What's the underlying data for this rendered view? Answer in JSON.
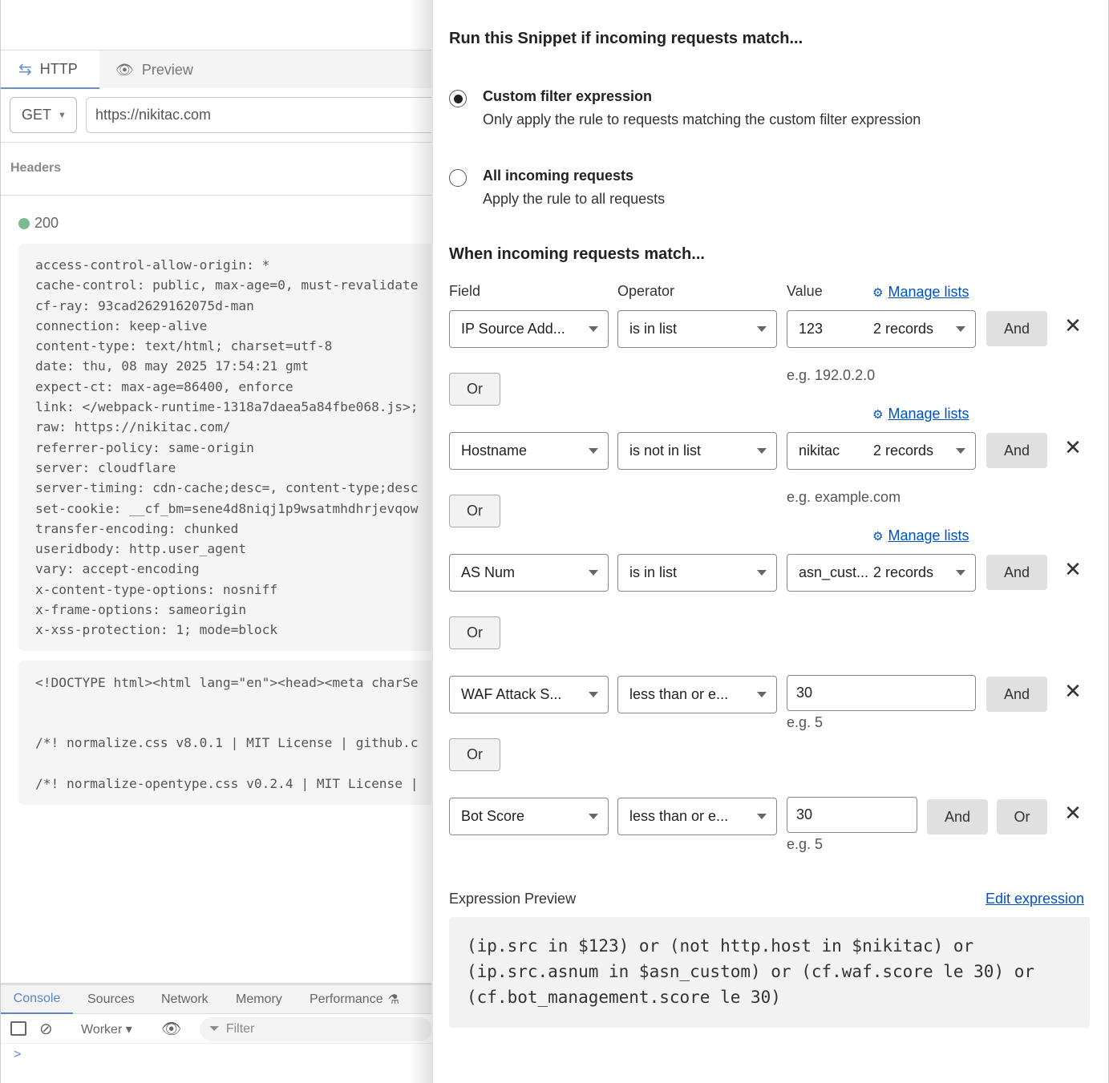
{
  "left": {
    "tabs": [
      {
        "label": "HTTP",
        "icon": "arrows-swap-icon"
      },
      {
        "label": "Preview",
        "icon": "eye-icon"
      }
    ],
    "method": "GET",
    "url": "https://nikitac.com",
    "section_label": "Headers",
    "status": {
      "code": "200",
      "color": "#7dba8d"
    },
    "headers": [
      "access-control-allow-origin: *",
      "cache-control: public, max-age=0, must-revalidate",
      "cf-ray: 93cad2629162075d-man",
      "connection: keep-alive",
      "content-type: text/html; charset=utf-8",
      "date: thu, 08 may 2025 17:54:21 gmt",
      "expect-ct: max-age=86400, enforce",
      "link: </webpack-runtime-1318a7daea5a84fbe068.js>;",
      "raw: https://nikitac.com/",
      "referrer-policy: same-origin",
      "server: cloudflare",
      "server-timing: cdn-cache;desc=, content-type;desc",
      "set-cookie: __cf_bm=sene4d8niqj1p9wsatmhdhrjevqow",
      "transfer-encoding: chunked",
      "useridbody: http.user_agent",
      "vary: accept-encoding",
      "x-content-type-options: nosniff",
      "x-frame-options: sameorigin",
      "x-xss-protection: 1; mode=block"
    ],
    "body_lines": [
      "<!DOCTYPE html><html lang=\"en\"><head><meta charSe",
      "",
      "",
      "/*! normalize.css v8.0.1 | MIT License | github.c",
      "",
      "/*! normalize-opentype.css v0.2.4 | MIT License |"
    ]
  },
  "devtools": {
    "tabs": [
      "Console",
      "Sources",
      "Network",
      "Memory",
      "Performance"
    ],
    "context": "Worker",
    "filter_placeholder": "Filter",
    "prompt": ">"
  },
  "right": {
    "title": "Run this Snippet if incoming requests match...",
    "options": [
      {
        "title": "Custom filter expression",
        "desc": "Only apply the rule to requests matching the custom filter expression",
        "selected": true
      },
      {
        "title": "All incoming requests",
        "desc": "Apply the rule to all requests",
        "selected": false
      }
    ],
    "match_title": "When incoming requests match...",
    "col_field": "Field",
    "col_operator": "Operator",
    "col_value": "Value",
    "manage_lists": "Manage lists",
    "and_label": "And",
    "or_label": "Or",
    "rows": [
      {
        "field": "IP Source Add...",
        "operator": "is in list",
        "value": "123",
        "records": "2 records",
        "example": "e.g. 192.0.2.0"
      },
      {
        "field": "Hostname",
        "operator": "is not in list",
        "value": "nikitac",
        "records": "2 records",
        "example": "e.g. example.com"
      },
      {
        "field": "AS Num",
        "operator": "is in list",
        "value": "asn_cust...",
        "records": "2 records",
        "example": ""
      },
      {
        "field": "WAF Attack S...",
        "operator": "less than or e...",
        "value": "30",
        "example": "e.g. 5"
      },
      {
        "field": "Bot Score",
        "operator": "less than or e...",
        "value": "30",
        "example": "e.g. 5"
      }
    ],
    "preview_label": "Expression Preview",
    "edit_expression": "Edit expression",
    "expression": "(ip.src in $123) or (not http.host in $nikitac) or\n(ip.src.asnum in $asn_custom) or (cf.waf.score le 30) or\n(cf.bot_management.score le 30)"
  }
}
